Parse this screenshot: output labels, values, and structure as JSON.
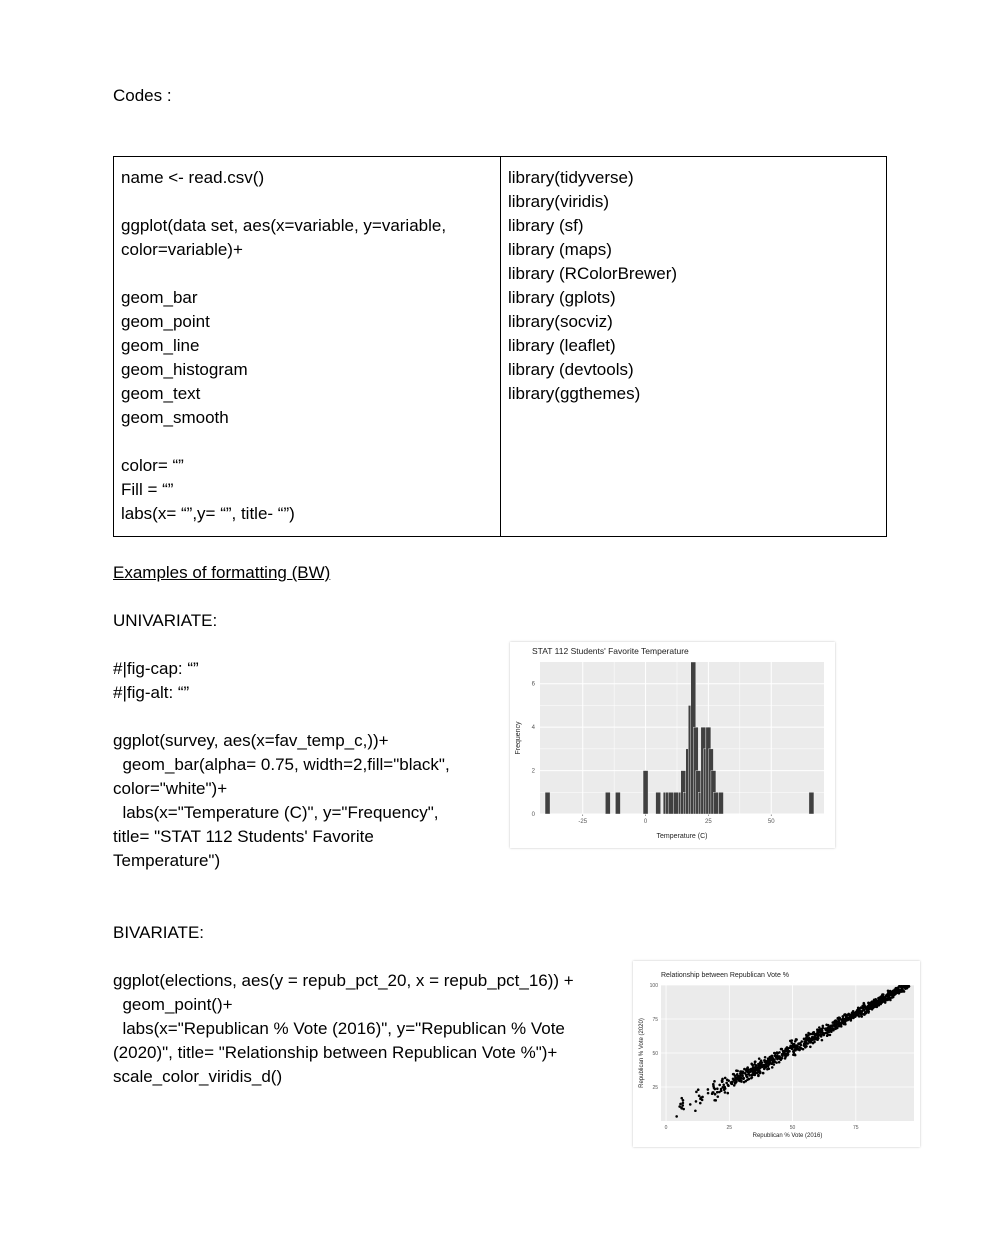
{
  "heading": "Codes :",
  "table": {
    "left_lines": [
      "name <- read.csv()",
      "",
      "ggplot(data set, aes(x=variable, y=variable,",
      "color=variable)+",
      "",
      "geom_bar",
      "geom_point",
      "geom_line",
      "geom_histogram",
      "geom_text",
      "geom_smooth",
      "",
      "color= “”",
      "Fill = “”",
      "labs(x= “”,y= “”, title- “”)"
    ],
    "right_lines": [
      "library(tidyverse)",
      "library(viridis)",
      "library (sf)",
      "library (maps)",
      "library (RColorBrewer)",
      "library (gplots)",
      "library(socviz)",
      "library (leaflet)",
      "library (devtools)",
      "library(ggthemes)"
    ]
  },
  "examples_heading": "Examples of formatting (BW)",
  "univariate": {
    "label": "UNIVARIATE:",
    "code_lines": [
      "#|fig-cap: “”",
      "#|fig-alt: “”",
      "",
      "ggplot(survey, aes(x=fav_temp_c,))+",
      "  geom_bar(alpha= 0.75, width=2,fill=\"black\",",
      "color=\"white\")+",
      "  labs(x=\"Temperature (C)\", y=\"Frequency\",",
      "title= \"STAT 112 Students' Favorite",
      "Temperature\")"
    ]
  },
  "bivariate": {
    "label": "BIVARIATE:",
    "code_lines": [
      "ggplot(elections, aes(y = repub_pct_20, x = repub_pct_16)) +",
      "  geom_point()+",
      "  labs(x=\"Republican % Vote (2016)\", y=\"Republican % Vote",
      "(2020)\", title= \"Relationship between Republican Vote %\")+",
      "scale_color_viridis_d()"
    ]
  },
  "colors": {
    "panel": "#ebebeb",
    "grid": "#ffffff",
    "bar": "#404040",
    "point": "#000000"
  },
  "chart_data": [
    {
      "type": "bar",
      "title": "STAT 112 Students' Favorite Temperature",
      "xlabel": "Temperature (C)",
      "ylabel": "Frequency",
      "xlim": [
        -42,
        71
      ],
      "ylim": [
        0,
        7
      ],
      "x_ticks": [
        "-25",
        "0",
        "25",
        "50"
      ],
      "x_tick_values": [
        -25,
        0,
        25,
        50
      ],
      "y_ticks": [
        "0",
        "2",
        "4",
        "6"
      ],
      "y_tick_values": [
        0,
        2,
        4,
        6
      ],
      "bar_width": 2,
      "x": [
        -39,
        -15,
        -11,
        0,
        5,
        8,
        9,
        10,
        12,
        14,
        15,
        16,
        17,
        18,
        19,
        20,
        21,
        22,
        23,
        24,
        25,
        26,
        27,
        28,
        30,
        66
      ],
      "values": [
        1,
        1,
        1,
        2,
        1,
        1,
        1,
        1,
        1,
        1,
        2,
        1,
        3,
        5,
        7,
        4,
        2,
        1,
        4,
        3,
        4,
        3,
        2,
        1,
        1,
        1
      ]
    },
    {
      "type": "scatter",
      "title": "Relationship between Republican Vote %",
      "xlabel": "Republican % Vote (2016)",
      "ylabel": "Republican % Vote (2020)",
      "xlim": [
        -2,
        98
      ],
      "ylim": [
        0,
        100
      ],
      "x_ticks": [
        "0",
        "25",
        "50",
        "75"
      ],
      "x_tick_values": [
        0,
        25,
        50,
        75
      ],
      "y_ticks": [
        "25",
        "50",
        "75",
        "100"
      ],
      "y_tick_values": [
        25,
        50,
        75,
        100
      ],
      "trend": {
        "slope": 1.02,
        "intercept": 2.5,
        "x_range": [
          4,
          96
        ]
      }
    }
  ]
}
